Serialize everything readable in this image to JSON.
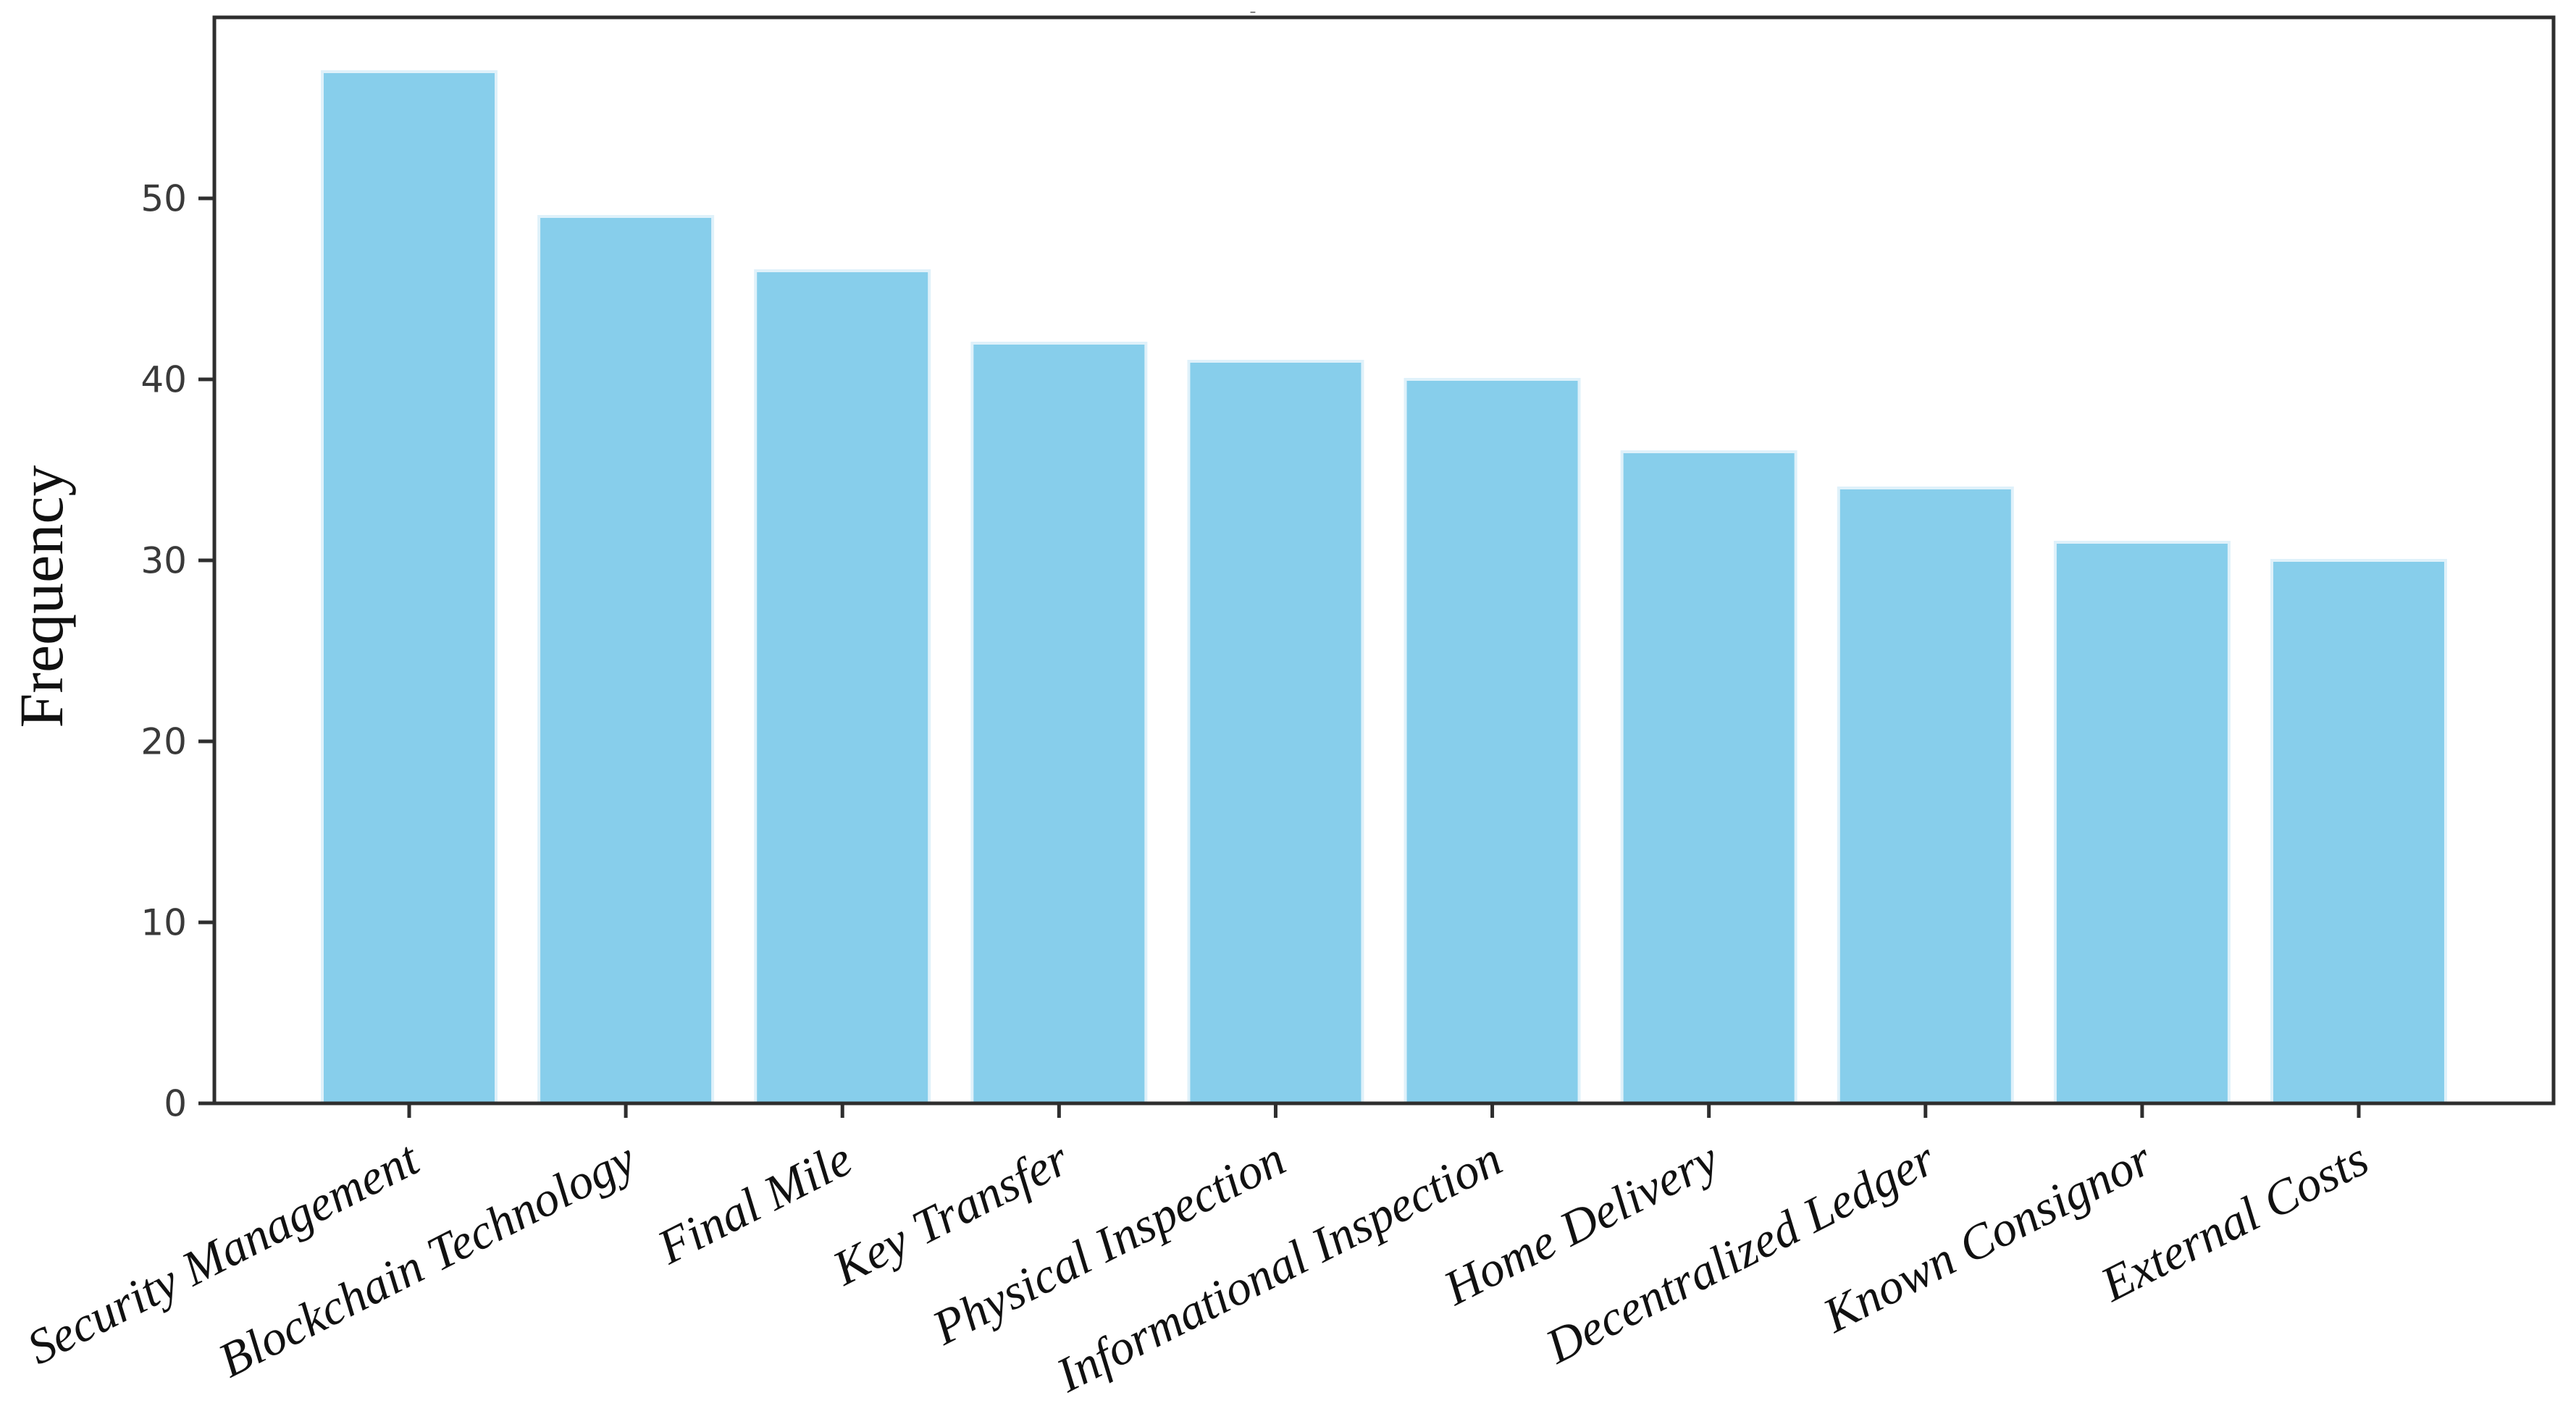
{
  "chart_data": {
    "type": "bar",
    "title": "-",
    "xlabel": "",
    "ylabel": "Frequency",
    "categories": [
      "Security Management",
      "Blockchain Technology",
      "Final Mile",
      "Key Transfer",
      "Physical Inspection",
      "Informational Inspection",
      "Home Delivery",
      "Decentralized Ledger",
      "Known Consignor",
      "External Costs"
    ],
    "values": [
      57,
      49,
      46,
      42,
      41,
      40,
      36,
      34,
      31,
      30
    ],
    "yticks": [
      0,
      10,
      20,
      30,
      40,
      50
    ],
    "ylim": [
      0,
      60
    ],
    "grid": false,
    "legend": false,
    "layout_hints": {
      "bar_orientation": "vertical",
      "xlabel_rotation_deg": 27,
      "frame": "full box"
    },
    "colors": {
      "bar_fill": "#87CEEB",
      "bar_edge": "#DFF1FA",
      "axis": "#2E2E2E",
      "tick_label": "#3A3A3A",
      "category_label": "#111111",
      "ylabel_text": "#111111",
      "title_mark": "#6E6E6E",
      "background": "#FFFFFF"
    }
  }
}
